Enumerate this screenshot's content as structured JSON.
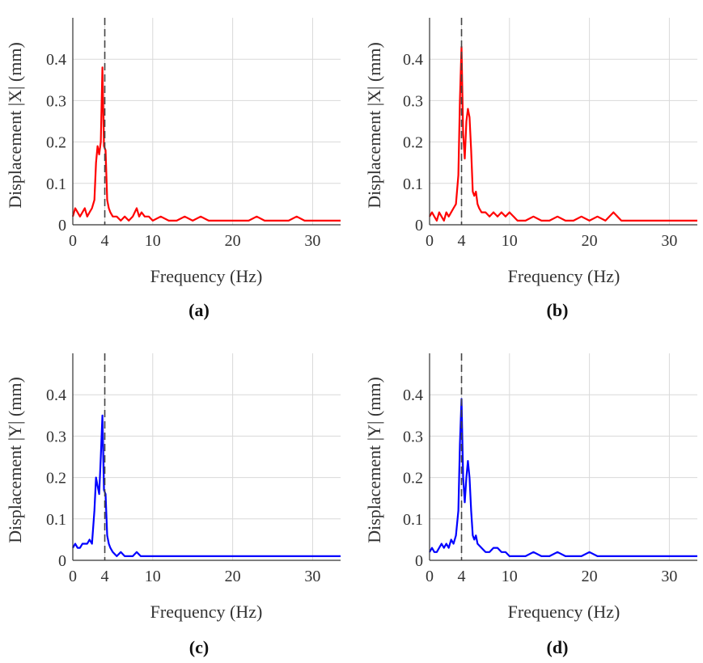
{
  "figure": {
    "panels": [
      {
        "label": "(a)",
        "xlabel": "Frequency (Hz)",
        "ylabel": "Displacement |X| (mm)"
      },
      {
        "label": "(b)",
        "xlabel": "Frequency (Hz)",
        "ylabel": "Displacement |X| (mm)"
      },
      {
        "label": "(c)",
        "xlabel": "Frequency (Hz)",
        "ylabel": "Displacement |Y| (mm)"
      },
      {
        "label": "(d)",
        "xlabel": "Frequency (Hz)",
        "ylabel": "Displacement |Y| (mm)"
      }
    ]
  },
  "chart_data": [
    {
      "type": "line",
      "panel": "(a)",
      "xlabel": "Frequency (Hz)",
      "ylabel": "Displacement |X| (mm)",
      "xlim": [
        0,
        33.5
      ],
      "ylim": [
        0,
        0.5
      ],
      "xticks": [
        0,
        4,
        10,
        20,
        30
      ],
      "yticks": [
        0,
        0.1,
        0.2,
        0.3,
        0.4
      ],
      "grid": true,
      "reference_line_x": 4,
      "color": "#ff0000",
      "x": [
        0,
        0.3,
        0.6,
        0.9,
        1.2,
        1.5,
        1.8,
        2.1,
        2.4,
        2.7,
        2.9,
        3.1,
        3.3,
        3.5,
        3.7,
        3.9,
        4.1,
        4.3,
        4.5,
        4.7,
        5.0,
        5.5,
        6,
        6.5,
        7,
        7.5,
        8,
        8.3,
        8.6,
        9,
        9.5,
        10,
        11,
        12,
        13,
        14,
        15,
        16,
        17,
        18,
        19,
        20,
        21,
        22,
        23,
        24,
        25,
        26,
        27,
        28,
        29,
        30,
        31,
        32,
        33.5
      ],
      "y": [
        0.02,
        0.04,
        0.03,
        0.02,
        0.03,
        0.04,
        0.02,
        0.03,
        0.04,
        0.06,
        0.15,
        0.19,
        0.17,
        0.2,
        0.38,
        0.19,
        0.18,
        0.06,
        0.04,
        0.03,
        0.02,
        0.02,
        0.01,
        0.02,
        0.01,
        0.02,
        0.04,
        0.02,
        0.03,
        0.02,
        0.02,
        0.01,
        0.02,
        0.01,
        0.01,
        0.02,
        0.01,
        0.02,
        0.01,
        0.01,
        0.01,
        0.01,
        0.01,
        0.01,
        0.02,
        0.01,
        0.01,
        0.01,
        0.01,
        0.02,
        0.01,
        0.01,
        0.01,
        0.01,
        0.01
      ]
    },
    {
      "type": "line",
      "panel": "(b)",
      "xlabel": "Frequency (Hz)",
      "ylabel": "Displacement |X| (mm)",
      "xlim": [
        0,
        33.5
      ],
      "ylim": [
        0,
        0.5
      ],
      "xticks": [
        0,
        4,
        10,
        20,
        30
      ],
      "yticks": [
        0,
        0.1,
        0.2,
        0.3,
        0.4
      ],
      "grid": true,
      "reference_line_x": 4,
      "color": "#ff0000",
      "x": [
        0,
        0.3,
        0.6,
        0.9,
        1.2,
        1.5,
        1.8,
        2.1,
        2.4,
        2.7,
        3.0,
        3.3,
        3.6,
        3.8,
        4.0,
        4.2,
        4.4,
        4.6,
        4.8,
        5.0,
        5.2,
        5.4,
        5.6,
        5.8,
        6.0,
        6.2,
        6.5,
        7,
        7.5,
        8,
        8.5,
        9,
        9.5,
        10,
        11,
        12,
        13,
        14,
        15,
        16,
        17,
        18,
        19,
        20,
        21,
        22,
        23,
        24,
        25,
        26,
        27,
        28,
        29,
        30,
        31,
        32,
        33.5
      ],
      "y": [
        0.02,
        0.03,
        0.02,
        0.01,
        0.03,
        0.02,
        0.01,
        0.03,
        0.02,
        0.03,
        0.04,
        0.05,
        0.12,
        0.3,
        0.43,
        0.22,
        0.16,
        0.25,
        0.28,
        0.26,
        0.18,
        0.08,
        0.07,
        0.08,
        0.05,
        0.04,
        0.03,
        0.03,
        0.02,
        0.03,
        0.02,
        0.03,
        0.02,
        0.03,
        0.01,
        0.01,
        0.02,
        0.01,
        0.01,
        0.02,
        0.01,
        0.01,
        0.02,
        0.01,
        0.02,
        0.01,
        0.03,
        0.01,
        0.01,
        0.01,
        0.01,
        0.01,
        0.01,
        0.01,
        0.01,
        0.01,
        0.01
      ]
    },
    {
      "type": "line",
      "panel": "(c)",
      "xlabel": "Frequency (Hz)",
      "ylabel": "Displacement |Y| (mm)",
      "xlim": [
        0,
        33.5
      ],
      "ylim": [
        0,
        0.5
      ],
      "xticks": [
        0,
        4,
        10,
        20,
        30
      ],
      "yticks": [
        0,
        0.1,
        0.2,
        0.3,
        0.4
      ],
      "grid": true,
      "reference_line_x": 4,
      "color": "#0000ff",
      "x": [
        0,
        0.3,
        0.6,
        0.9,
        1.2,
        1.5,
        1.8,
        2.1,
        2.4,
        2.7,
        2.9,
        3.1,
        3.3,
        3.5,
        3.7,
        3.9,
        4.1,
        4.3,
        4.5,
        4.7,
        5.0,
        5.5,
        6,
        6.5,
        7,
        7.5,
        8,
        8.5,
        9,
        10,
        11,
        12,
        13,
        14,
        15,
        16,
        17,
        18,
        19,
        20,
        21,
        22,
        23,
        24,
        25,
        26,
        27,
        28,
        29,
        30,
        31,
        32,
        33.5
      ],
      "y": [
        0.03,
        0.04,
        0.03,
        0.03,
        0.04,
        0.04,
        0.04,
        0.05,
        0.04,
        0.12,
        0.2,
        0.18,
        0.16,
        0.25,
        0.35,
        0.17,
        0.16,
        0.06,
        0.04,
        0.03,
        0.02,
        0.01,
        0.02,
        0.01,
        0.01,
        0.01,
        0.02,
        0.01,
        0.01,
        0.01,
        0.01,
        0.01,
        0.01,
        0.01,
        0.01,
        0.01,
        0.01,
        0.01,
        0.01,
        0.01,
        0.01,
        0.01,
        0.01,
        0.01,
        0.01,
        0.01,
        0.01,
        0.01,
        0.01,
        0.01,
        0.01,
        0.01,
        0.01
      ]
    },
    {
      "type": "line",
      "panel": "(d)",
      "xlabel": "Frequency (Hz)",
      "ylabel": "Displacement |Y| (mm)",
      "xlim": [
        0,
        33.5
      ],
      "ylim": [
        0,
        0.5
      ],
      "xticks": [
        0,
        4,
        10,
        20,
        30
      ],
      "yticks": [
        0,
        0.1,
        0.2,
        0.3,
        0.4
      ],
      "grid": true,
      "reference_line_x": 4,
      "color": "#0000ff",
      "x": [
        0,
        0.3,
        0.6,
        0.9,
        1.2,
        1.5,
        1.8,
        2.1,
        2.4,
        2.7,
        3.0,
        3.3,
        3.6,
        3.8,
        4.0,
        4.2,
        4.4,
        4.6,
        4.8,
        5.0,
        5.2,
        5.4,
        5.6,
        5.8,
        6.0,
        6.5,
        7,
        7.5,
        8,
        8.5,
        9,
        9.5,
        10,
        11,
        12,
        13,
        14,
        15,
        16,
        17,
        18,
        19,
        20,
        21,
        22,
        23,
        24,
        25,
        26,
        27,
        28,
        29,
        30,
        31,
        32,
        33.5
      ],
      "y": [
        0.02,
        0.03,
        0.02,
        0.02,
        0.03,
        0.04,
        0.03,
        0.04,
        0.03,
        0.05,
        0.04,
        0.06,
        0.12,
        0.28,
        0.39,
        0.2,
        0.14,
        0.2,
        0.24,
        0.2,
        0.12,
        0.06,
        0.05,
        0.06,
        0.04,
        0.03,
        0.02,
        0.02,
        0.03,
        0.03,
        0.02,
        0.02,
        0.01,
        0.01,
        0.01,
        0.02,
        0.01,
        0.01,
        0.02,
        0.01,
        0.01,
        0.01,
        0.02,
        0.01,
        0.01,
        0.01,
        0.01,
        0.01,
        0.01,
        0.01,
        0.01,
        0.01,
        0.01,
        0.01,
        0.01,
        0.01
      ]
    }
  ]
}
